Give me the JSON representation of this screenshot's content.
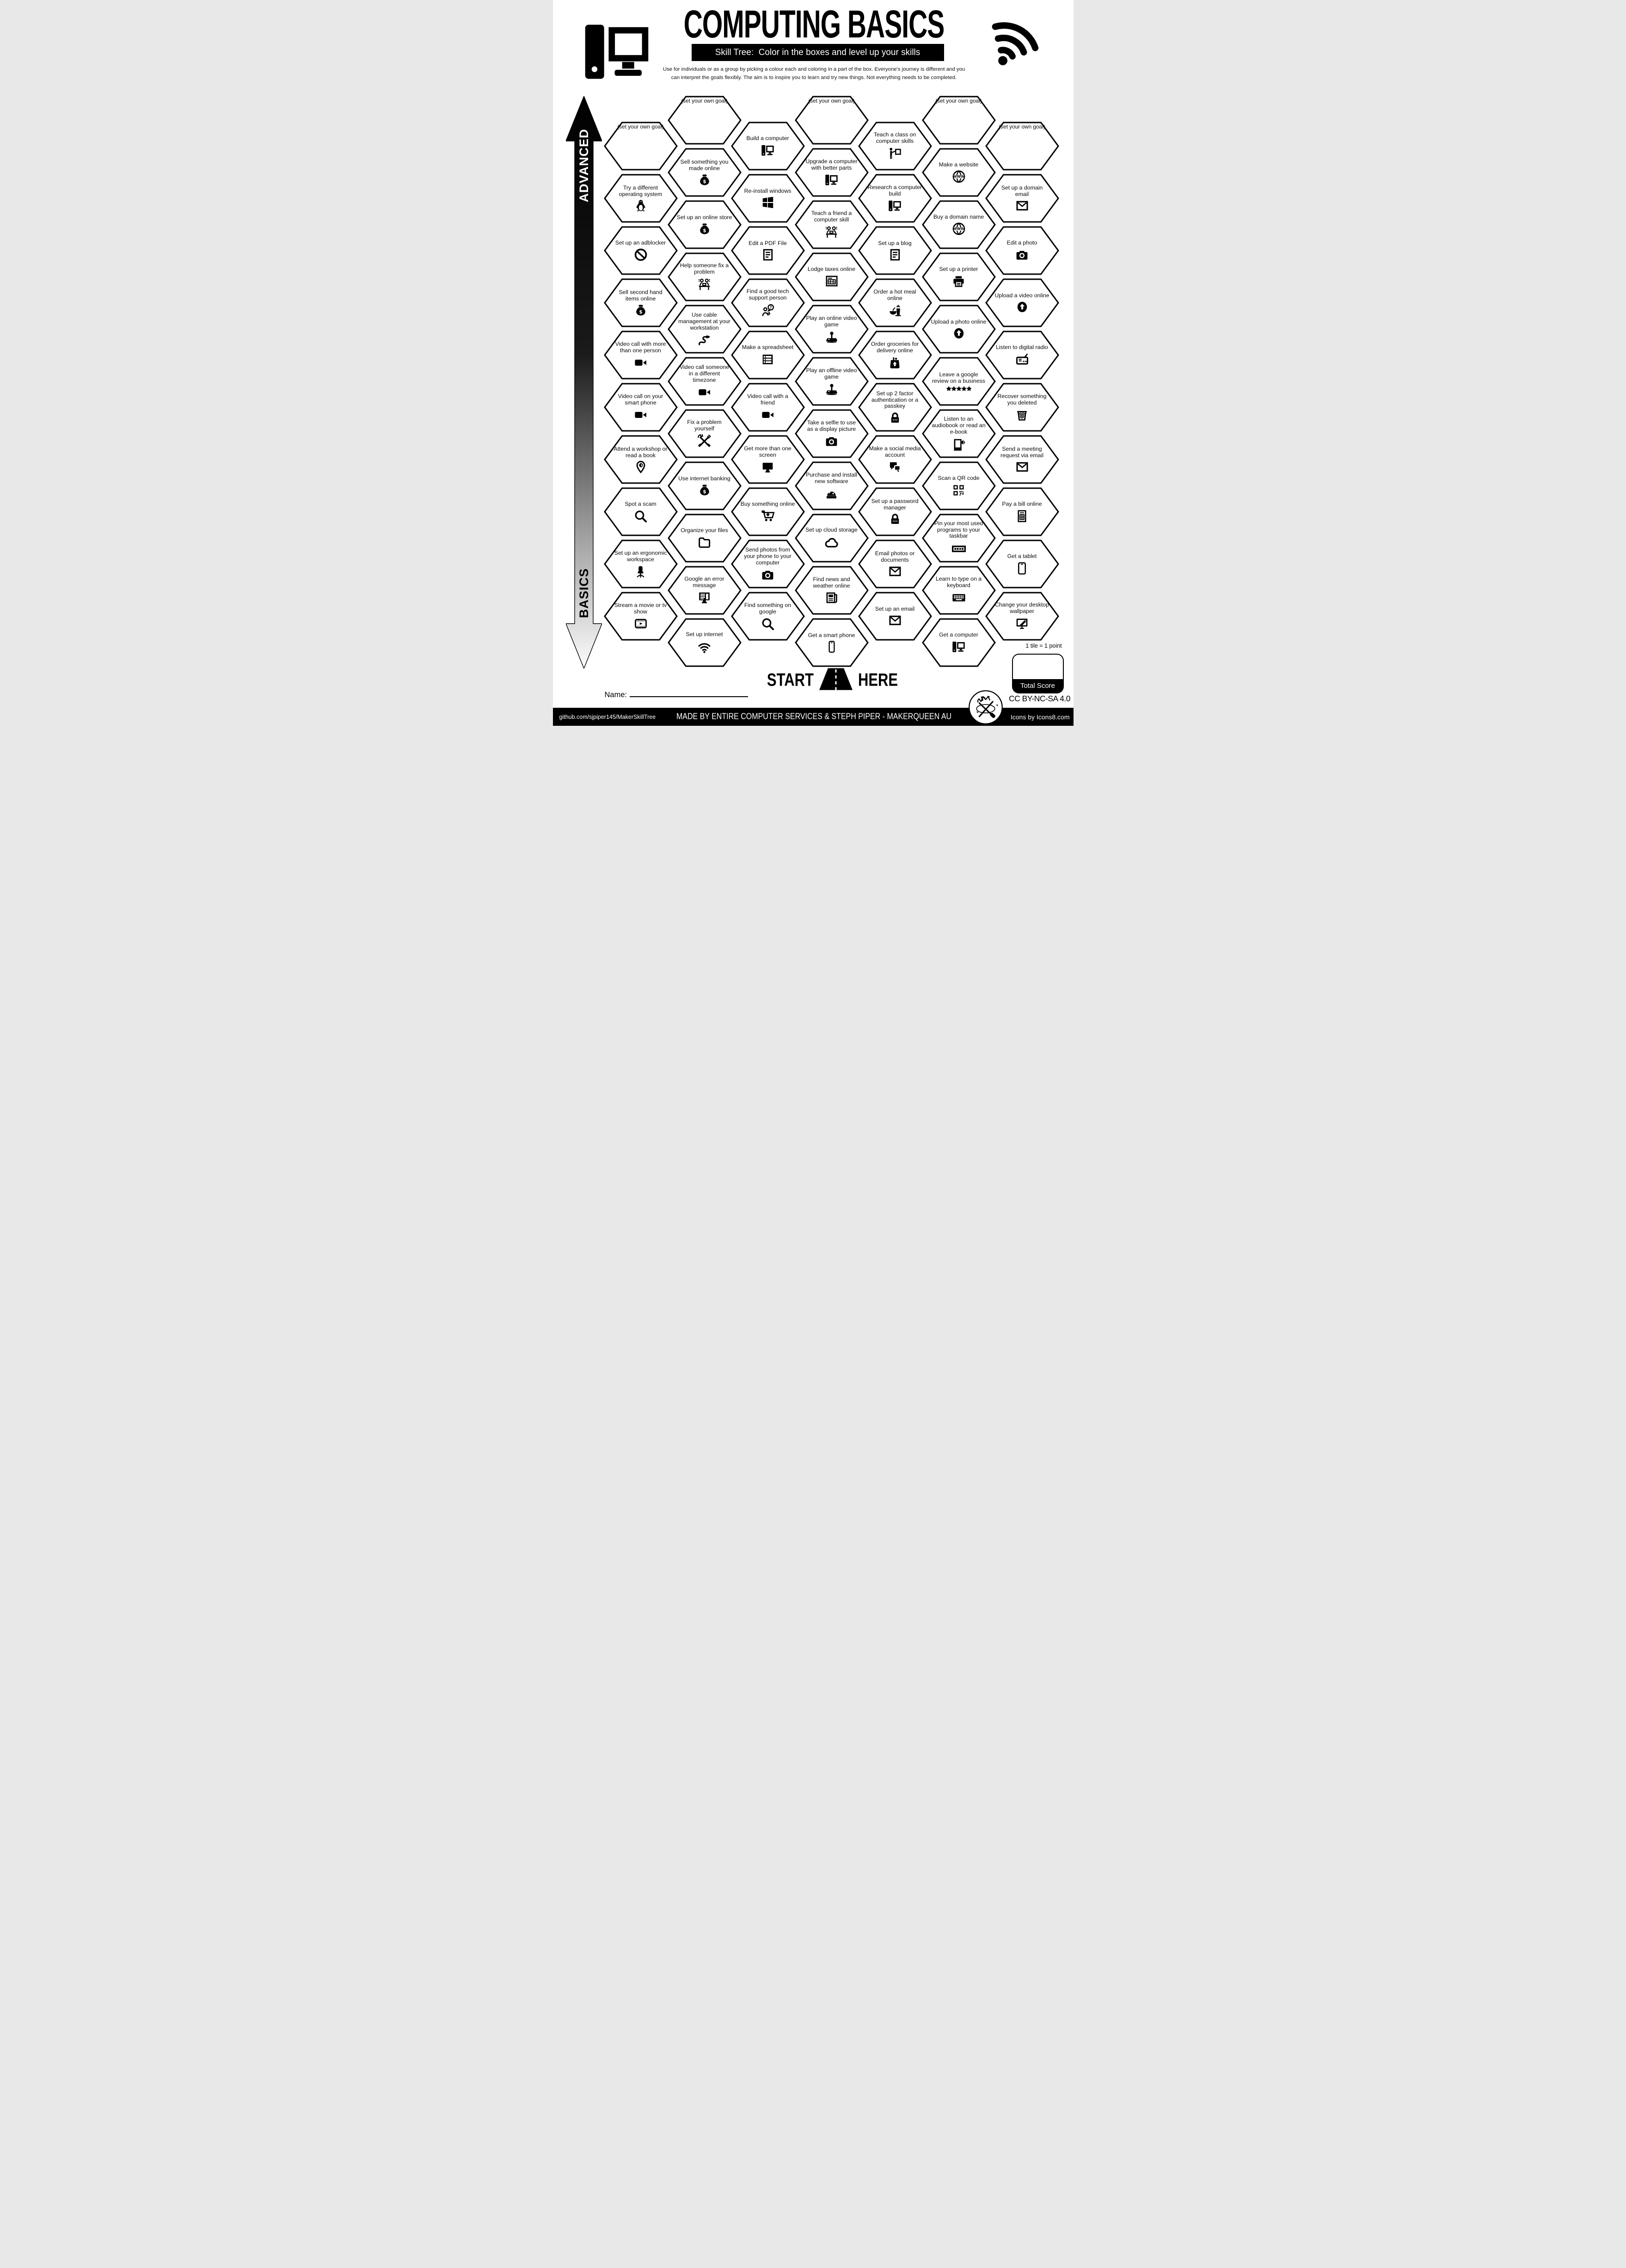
{
  "header": {
    "title": "COMPUTING BASICS",
    "subtitle": "Skill Tree:  Color in the boxes and level up your skills",
    "description": "Use for individuals or as a group by picking a colour each and coloring in a part of the box.  Everyone's journey is different and you can interpret the goals flexibly.  The aim is to inspire you to learn and try new things. Not everything needs to be completed."
  },
  "axis": {
    "top_label": "ADVANCED",
    "bottom_label": "BASICS"
  },
  "goal_label": "(set your own goal)",
  "start": {
    "left": "START",
    "right": "HERE"
  },
  "name_label": "Name:",
  "scoring": {
    "tile_note": "1 tile = 1 point",
    "total_label": "Total Score"
  },
  "license": "CC BY-NC-SA 4.0",
  "footer": {
    "left": "github.com/sjpiper145/MakerSkillTree",
    "center": "MADE BY ENTIRE COMPUTER SERVICES & STEPH PIPER  -  MAKERQUEEN AU",
    "right": "Icons by Icons8.com"
  },
  "colors": {
    "ink": "#000000",
    "paper": "#ffffff"
  },
  "columns": [
    {
      "id": "A",
      "offset": "low",
      "tiles": [
        {
          "goal": true
        },
        {
          "label": "Try a different operating system",
          "icon": "penguin-icon"
        },
        {
          "label": "Set up an adblocker",
          "icon": "block-icon"
        },
        {
          "label": "Sell second hand items online",
          "icon": "money-bag-icon"
        },
        {
          "label": "Video call with more than one person",
          "icon": "video-camera-icon"
        },
        {
          "label": "Video call on your smart phone",
          "icon": "video-camera-icon"
        },
        {
          "label": "Attend a workshop or read a book",
          "icon": "location-pin-icon"
        },
        {
          "label": "Spot a scam",
          "icon": "magnifier-icon"
        },
        {
          "label": "Set up an ergonomic workspace",
          "icon": "chair-icon"
        },
        {
          "label": "Stream a movie or tv show",
          "icon": "film-player-icon"
        }
      ]
    },
    {
      "id": "B",
      "offset": "high",
      "tiles": [
        {
          "goal": true
        },
        {
          "label": "Sell something you made online",
          "icon": "money-bag-icon"
        },
        {
          "label": "Set up an online store",
          "icon": "money-bag-icon"
        },
        {
          "label": "Help someone fix a problem",
          "icon": "people-desk-icon"
        },
        {
          "label": "Use cable management at your workstation",
          "icon": "cable-icon"
        },
        {
          "label": "Video call someone in a different timezone",
          "icon": "video-camera-icon"
        },
        {
          "label": "Fix a problem yourself",
          "icon": "crossed-tools-icon"
        },
        {
          "label": "Use internet banking",
          "icon": "money-bag-icon"
        },
        {
          "label": "Organize your files",
          "icon": "folder-icon"
        },
        {
          "label": "Google an error message",
          "icon": "error-monitor-icon"
        },
        {
          "label": "Set up internet",
          "icon": "wifi-icon"
        }
      ]
    },
    {
      "id": "C",
      "offset": "low",
      "tiles": [
        {
          "label": "Build a computer",
          "icon": "desktop-computer-icon"
        },
        {
          "label": "Re-install windows",
          "icon": "windows-icon"
        },
        {
          "label": "Edit a PDF File",
          "icon": "document-icon"
        },
        {
          "label": "Find a good tech support person",
          "icon": "support-person-icon"
        },
        {
          "label": "Make a spreadsheet",
          "icon": "spreadsheet-icon"
        },
        {
          "label": "Video call with a friend",
          "icon": "video-camera-icon"
        },
        {
          "label": "Get more than one screen",
          "icon": "monitor-icon"
        },
        {
          "label": "Buy something online",
          "icon": "cart-icon"
        },
        {
          "label": "Send photos from your phone to your computer",
          "icon": "camera-icon"
        },
        {
          "label": "Find something on google",
          "icon": "magnifier-icon"
        }
      ]
    },
    {
      "id": "D",
      "offset": "high",
      "tiles": [
        {
          "goal": true
        },
        {
          "label": "Upgrade a computer with better parts",
          "icon": "desktop-computer-icon"
        },
        {
          "label": "Teach a friend a computer skill",
          "icon": "people-desk-icon"
        },
        {
          "label": "Lodge taxes online",
          "icon": "tax-form-icon"
        },
        {
          "label": "Play an online video game",
          "icon": "joystick-icon"
        },
        {
          "label": "Play an offline video game",
          "icon": "joystick-icon"
        },
        {
          "label": "Take a selfie to use as a display picture",
          "icon": "camera-icon"
        },
        {
          "label": "Purchase and install new software",
          "icon": "software-icon"
        },
        {
          "label": "Set up cloud storage",
          "icon": "cloud-icon"
        },
        {
          "label": "Find news and weather online",
          "icon": "newspaper-icon"
        },
        {
          "label": "Get a smart phone",
          "icon": "smartphone-icon"
        }
      ]
    },
    {
      "id": "E",
      "offset": "low",
      "tiles": [
        {
          "label": "Teach a class on computer skills",
          "icon": "teach-class-icon"
        },
        {
          "label": "Research a computer build",
          "icon": "desktop-computer-icon"
        },
        {
          "label": "Set up a blog",
          "icon": "document-icon"
        },
        {
          "label": "Order a hot meal online",
          "icon": "hot-meal-icon"
        },
        {
          "label": "Order groceries for delivery online",
          "icon": "grocery-bag-icon"
        },
        {
          "label": "Set up 2 factor authentication or a passkey",
          "icon": "lock-icon"
        },
        {
          "label": "Make a social media account",
          "icon": "chat-bubbles-icon"
        },
        {
          "label": "Set up a password manager",
          "icon": "lock-icon"
        },
        {
          "label": "Email photos or documents",
          "icon": "envelope-icon"
        },
        {
          "label": "Set up an email",
          "icon": "envelope-icon"
        }
      ]
    },
    {
      "id": "F",
      "offset": "high",
      "tiles": [
        {
          "goal": true
        },
        {
          "label": "Make a website",
          "icon": "www-globe-icon"
        },
        {
          "label": "Buy a domain name",
          "icon": "www-globe-icon"
        },
        {
          "label": "Set up a printer",
          "icon": "printer-icon"
        },
        {
          "label": "Upload a photo online",
          "icon": "upload-icon"
        },
        {
          "label": "Leave a google review on a business",
          "icon": "five-stars-icon"
        },
        {
          "label": "Listen to an audiobook or read an e-book",
          "icon": "audiobook-icon"
        },
        {
          "label": "Scan a QR code",
          "icon": "qr-code-icon"
        },
        {
          "label": "Pin your most used programs to your taskbar",
          "icon": "taskbar-icon"
        },
        {
          "label": "Learn to type on a keyboard",
          "icon": "keyboard-icon"
        },
        {
          "label": "Get a computer",
          "icon": "desktop-computer-icon"
        }
      ]
    },
    {
      "id": "G",
      "offset": "low",
      "tiles": [
        {
          "goal": true
        },
        {
          "label": "Set up a domain email",
          "icon": "envelope-icon"
        },
        {
          "label": "Edit a photo",
          "icon": "camera-icon"
        },
        {
          "label": "Upload a video online",
          "icon": "upload-icon"
        },
        {
          "label": "Listen to digital radio",
          "icon": "radio-icon"
        },
        {
          "label": "Recover something you deleted",
          "icon": "trash-icon"
        },
        {
          "label": "Send a meeting request via email",
          "icon": "envelope-icon"
        },
        {
          "label": "Pay a bill online",
          "icon": "bill-icon"
        },
        {
          "label": "Get a tablet",
          "icon": "tablet-icon"
        },
        {
          "label": "Change your desktop wallpaper",
          "icon": "wallpaper-icon"
        }
      ]
    }
  ]
}
